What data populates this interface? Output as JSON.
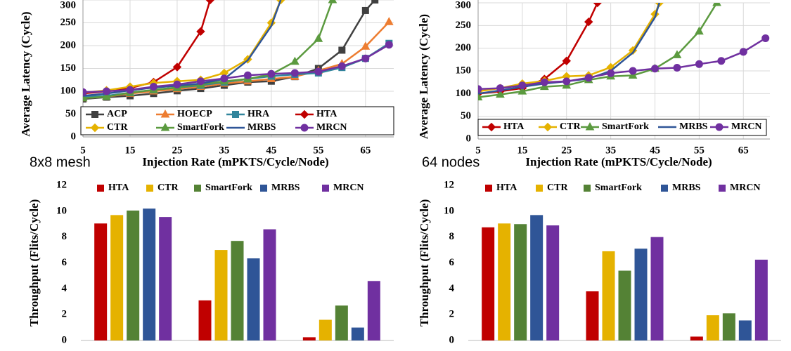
{
  "chart_data": [
    {
      "type": "line",
      "y_label": "Average Latency (Cycle)",
      "x_label": "Injection Rate (mPKTS/Cycle/Node)",
      "annotation": "8x8 mesh",
      "annotation_color": "#ff0000",
      "xlim": [
        5,
        71
      ],
      "xticks": [
        5,
        15,
        25,
        35,
        45,
        55,
        65
      ],
      "ylim": [
        0,
        300
      ],
      "yticks": [
        0,
        50,
        100,
        150,
        200,
        250,
        300
      ],
      "grid": true,
      "legend": "lower",
      "legend_columns": 4,
      "series": [
        {
          "name": "ACP",
          "color": "#404040",
          "marker": "square",
          "x": [
            5,
            10,
            15,
            20,
            25,
            30,
            35,
            40,
            45,
            50,
            55,
            60,
            65,
            67
          ],
          "values": [
            83,
            87,
            90,
            95,
            101,
            106,
            113,
            120,
            122,
            132,
            150,
            190,
            277,
            300
          ]
        },
        {
          "name": "HOECP",
          "color": "#ed7d31",
          "marker": "triangle",
          "x": [
            5,
            10,
            15,
            20,
            25,
            30,
            35,
            40,
            45,
            50,
            55,
            60,
            65,
            70
          ],
          "values": [
            85,
            88,
            95,
            100,
            105,
            110,
            117,
            122,
            127,
            132,
            145,
            160,
            198,
            252
          ]
        },
        {
          "name": "HRA",
          "color": "#31859c",
          "marker": "square",
          "x": [
            5,
            10,
            15,
            20,
            25,
            30,
            35,
            40,
            45,
            50,
            55,
            60,
            65,
            70
          ],
          "values": [
            88,
            90,
            97,
            103,
            108,
            113,
            120,
            127,
            133,
            137,
            140,
            152,
            172,
            205
          ]
        },
        {
          "name": "HTA",
          "color": "#c00000",
          "marker": "diamond",
          "x": [
            5,
            10,
            15,
            20,
            25,
            30,
            32
          ],
          "values": [
            95,
            100,
            107,
            120,
            153,
            231,
            300
          ]
        },
        {
          "name": "CTR",
          "color": "#e5b200",
          "marker": "diamond",
          "x": [
            5,
            10,
            15,
            20,
            25,
            30,
            35,
            40,
            45,
            47
          ],
          "values": [
            97,
            102,
            110,
            118,
            122,
            125,
            140,
            170,
            250,
            300
          ]
        },
        {
          "name": "SmartFork",
          "color": "#5b9a3f",
          "marker": "triangle",
          "x": [
            5,
            10,
            15,
            20,
            25,
            30,
            35,
            40,
            45,
            50,
            55,
            58
          ],
          "values": [
            85,
            88,
            97,
            103,
            108,
            115,
            122,
            127,
            137,
            165,
            215,
            300
          ]
        },
        {
          "name": "MRBS",
          "color": "#2f5597",
          "marker": "none",
          "x": [
            5,
            10,
            15,
            20,
            25,
            30,
            35,
            40,
            45,
            47
          ],
          "values": [
            90,
            95,
            102,
            108,
            112,
            117,
            127,
            168,
            243,
            300
          ]
        },
        {
          "name": "MRCN",
          "color": "#7030a0",
          "marker": "circle",
          "x": [
            5,
            10,
            15,
            20,
            25,
            30,
            35,
            40,
            45,
            50,
            55,
            60,
            65,
            70
          ],
          "values": [
            98,
            100,
            103,
            110,
            115,
            122,
            128,
            135,
            138,
            140,
            143,
            155,
            172,
            202
          ]
        }
      ]
    },
    {
      "type": "line",
      "y_label": "Average Latency (Cycle)",
      "x_label": "Injection Rate (mPKTS/Cycle/Node)",
      "annotation": "64 nodes",
      "annotation_color": "#ff0000",
      "xlim": [
        5,
        71
      ],
      "xticks": [
        5,
        15,
        25,
        35,
        45,
        55,
        65
      ],
      "ylim": [
        0,
        300
      ],
      "yticks": [
        0,
        50,
        100,
        150,
        200,
        250,
        300
      ],
      "grid": true,
      "legend": "lower",
      "legend_columns": 5,
      "series": [
        {
          "name": "HTA",
          "color": "#c00000",
          "marker": "diamond",
          "x": [
            5,
            10,
            15,
            20,
            25,
            30,
            32
          ],
          "values": [
            100,
            105,
            112,
            132,
            172,
            258,
            300
          ]
        },
        {
          "name": "CTR",
          "color": "#e5b200",
          "marker": "diamond",
          "x": [
            5,
            10,
            15,
            20,
            25,
            30,
            35,
            40,
            45,
            46
          ],
          "values": [
            105,
            112,
            122,
            128,
            138,
            140,
            158,
            195,
            275,
            300
          ]
        },
        {
          "name": "SmartFork",
          "color": "#5b9a3f",
          "marker": "triangle",
          "x": [
            5,
            10,
            15,
            20,
            25,
            30,
            35,
            40,
            45,
            50,
            55,
            59
          ],
          "values": [
            92,
            98,
            105,
            115,
            118,
            130,
            138,
            140,
            155,
            185,
            237,
            300
          ]
        },
        {
          "name": "MRBS",
          "color": "#2f5597",
          "marker": "none",
          "x": [
            5,
            10,
            15,
            20,
            25,
            30,
            35,
            40,
            45,
            46
          ],
          "values": [
            100,
            107,
            115,
            122,
            127,
            133,
            150,
            190,
            268,
            300
          ]
        },
        {
          "name": "MRCN",
          "color": "#7030a0",
          "marker": "circle",
          "x": [
            5,
            10,
            15,
            20,
            25,
            30,
            35,
            40,
            45,
            50,
            55,
            60,
            65,
            70
          ],
          "values": [
            110,
            112,
            118,
            125,
            127,
            135,
            145,
            150,
            155,
            157,
            165,
            172,
            192,
            222
          ]
        }
      ]
    },
    {
      "type": "bar",
      "y_label": "Throughput (Flits/Cycle)",
      "categories": [
        null,
        null,
        null
      ],
      "ylim": [
        0,
        12
      ],
      "yticks": [
        0,
        2,
        4,
        6,
        8,
        10,
        12
      ],
      "grid": false,
      "legend": "top",
      "legend_columns": 5,
      "series": [
        {
          "name": "HTA",
          "color": "#c00000",
          "values": [
            9.05,
            3.1,
            0.25
          ]
        },
        {
          "name": "CTR",
          "color": "#e5b200",
          "values": [
            9.7,
            7.0,
            1.6
          ]
        },
        {
          "name": "SmartFork",
          "color": "#548235",
          "values": [
            10.05,
            7.7,
            2.7
          ]
        },
        {
          "name": "MRBS",
          "color": "#2f5597",
          "values": [
            10.2,
            6.35,
            1.0
          ]
        },
        {
          "name": "MRCN",
          "color": "#7030a0",
          "values": [
            9.55,
            8.6,
            4.6
          ]
        }
      ]
    },
    {
      "type": "bar",
      "y_label": "Throughput (Flits/Cycle)",
      "categories": [
        null,
        null,
        null
      ],
      "ylim": [
        0,
        12
      ],
      "yticks": [
        0,
        2,
        4,
        6,
        8,
        10,
        12
      ],
      "grid": false,
      "legend": "top",
      "legend_columns": 5,
      "series": [
        {
          "name": "HTA",
          "color": "#c00000",
          "values": [
            8.75,
            3.8,
            0.3
          ]
        },
        {
          "name": "CTR",
          "color": "#e5b200",
          "values": [
            9.05,
            6.9,
            1.95
          ]
        },
        {
          "name": "SmartFork",
          "color": "#548235",
          "values": [
            9.0,
            5.4,
            2.1
          ]
        },
        {
          "name": "MRBS",
          "color": "#2f5597",
          "values": [
            9.7,
            7.1,
            1.55
          ]
        },
        {
          "name": "MRCN",
          "color": "#7030a0",
          "values": [
            8.9,
            8.0,
            6.25
          ]
        }
      ]
    }
  ]
}
